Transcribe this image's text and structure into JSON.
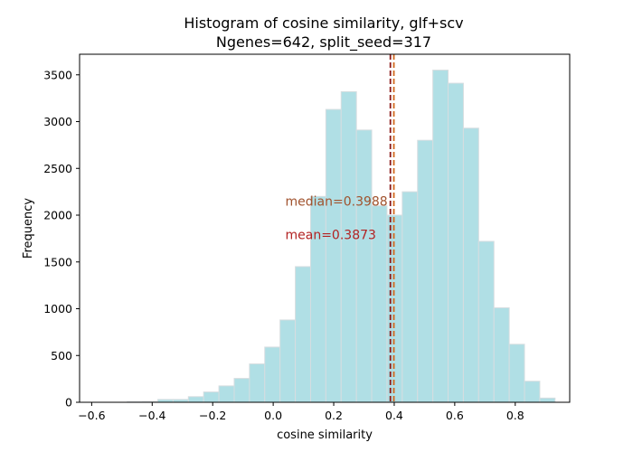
{
  "chart_data": {
    "type": "bar",
    "title": "Histogram of cosine similarity, glf+scv",
    "subtitle": "Ngenes=642, split_seed=317",
    "xlabel": "cosine similarity",
    "ylabel": "Frequency",
    "xlim": [
      -0.64,
      0.98
    ],
    "ylim": [
      0,
      3720
    ],
    "xticks": [
      -0.6,
      -0.4,
      -0.2,
      0.0,
      0.2,
      0.4,
      0.6,
      0.8
    ],
    "xtick_labels": [
      "−0.6",
      "−0.4",
      "−0.2",
      "0.0",
      "0.2",
      "0.4",
      "0.6",
      "0.8"
    ],
    "yticks": [
      0,
      500,
      1000,
      1500,
      2000,
      2500,
      3000,
      3500
    ],
    "bins": {
      "start": -0.4824,
      "width": 0.0505,
      "counts": [
        5,
        8,
        30,
        30,
        60,
        110,
        175,
        255,
        410,
        590,
        880,
        1450,
        2200,
        3130,
        3320,
        2910,
        2100,
        2000,
        2250,
        2800,
        3550,
        3410,
        2930,
        1720,
        1010,
        620,
        225,
        45
      ]
    },
    "bar_color": "#b0dfe5",
    "bar_edge_color": "#d6dde0",
    "vlines": [
      {
        "name": "mean",
        "x": 0.3873,
        "color": "#8b1a1a"
      },
      {
        "name": "median",
        "x": 0.3988,
        "color": "#d2691e"
      }
    ],
    "annotations": {
      "median": {
        "text": "median=0.3988",
        "x": 0.04,
        "y": 2150,
        "color": "#a0522d"
      },
      "mean": {
        "text": "mean=0.3873",
        "x": 0.04,
        "y": 1790,
        "color": "#b22222"
      }
    },
    "grid": false,
    "legend": "none"
  }
}
